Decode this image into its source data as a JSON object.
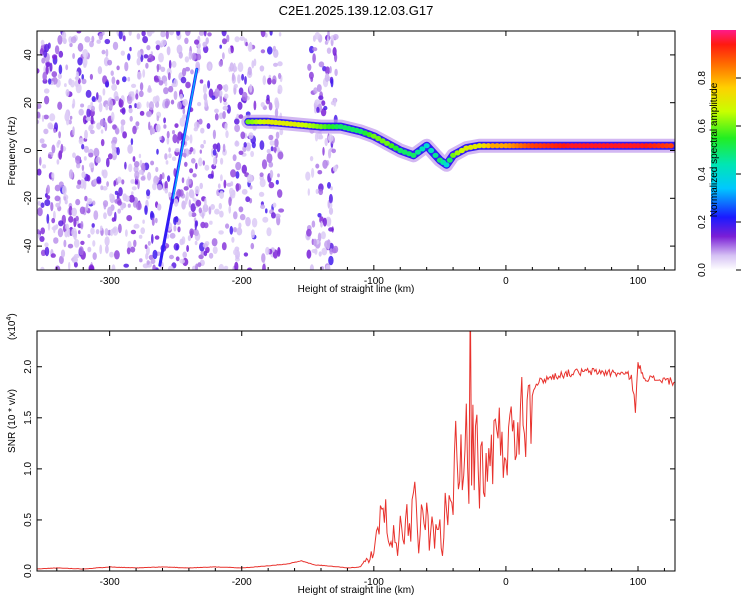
{
  "title": "C2E1.2025.139.12.03.G17",
  "colorbar": {
    "label": "Normalized spectral amplitude",
    "ticks": [
      0.0,
      0.2,
      0.4,
      0.6,
      0.8
    ]
  },
  "chart_data": [
    {
      "type": "heatmap",
      "title": "C2E1.2025.139.12.03.G17",
      "xlabel": "Height of straight line (km)",
      "ylabel": "Frequency (Hz)",
      "xlim": [
        -355,
        128
      ],
      "ylim": [
        -50,
        50
      ],
      "xticks": [
        -300,
        -200,
        -100,
        0,
        100
      ],
      "yticks": [
        -40,
        -20,
        0,
        20,
        40
      ],
      "colorbar_label": "Normalized spectral amplitude",
      "colorbar_range": [
        0,
        1
      ],
      "ridge": {
        "x": [
          -195,
          -180,
          -160,
          -140,
          -125,
          -110,
          -100,
          -90,
          -80,
          -70,
          -60,
          -50,
          -45,
          -40,
          -30,
          -20,
          -10,
          0,
          20,
          50,
          80,
          100,
          128
        ],
        "y": [
          12,
          12,
          11,
          10,
          10,
          8,
          6,
          3,
          0,
          -2,
          2,
          -4,
          -6,
          -2,
          1,
          2,
          2,
          2,
          2,
          2,
          2,
          2,
          2
        ],
        "amplitude": [
          0.6,
          0.7,
          0.7,
          0.6,
          0.5,
          0.5,
          0.6,
          0.6,
          0.5,
          0.5,
          0.4,
          0.5,
          0.4,
          0.6,
          0.7,
          0.7,
          0.8,
          0.8,
          0.9,
          0.95,
          0.95,
          0.95,
          0.9
        ]
      },
      "noise_regions": [
        {
          "x": [
            -355,
            -190
          ],
          "amplitude": "low"
        },
        {
          "x": [
            -185,
            -170
          ],
          "amplitude": "low"
        },
        {
          "x": [
            -150,
            -128
          ],
          "amplitude": "low"
        }
      ],
      "streak": {
        "x": [
          -262,
          -234
        ],
        "y": [
          -48,
          34
        ]
      }
    },
    {
      "type": "line",
      "xlabel": "Height of straight line (km)",
      "ylabel": "SNR (10 * v/v)",
      "multiplier_label": "(x10",
      "multiplier_exp": "4",
      "xlim": [
        -355,
        128
      ],
      "ylim": [
        0,
        2.35
      ],
      "xticks": [
        -300,
        -200,
        -100,
        0,
        100
      ],
      "yticks": [
        0.0,
        0.5,
        1.0,
        1.5,
        2.0
      ],
      "color": "#e8322d",
      "series": [
        {
          "x": [
            -355,
            -340,
            -320,
            -300,
            -280,
            -260,
            -240,
            -220,
            -200,
            -180,
            -165,
            -155,
            -145,
            -135,
            -120,
            -110,
            -102,
            -98,
            -95,
            -92,
            -90,
            -88,
            -85,
            -82,
            -80,
            -78,
            -75,
            -72,
            -70,
            -68,
            -66,
            -64,
            -62,
            -60,
            -58,
            -56,
            -54,
            -52,
            -50,
            -48,
            -46,
            -44,
            -42,
            -40,
            -38,
            -36,
            -34,
            -32,
            -30,
            -28,
            -27,
            -26,
            -25,
            -24,
            -22,
            -20,
            -18,
            -16,
            -14,
            -12,
            -10,
            -8,
            -6,
            -4,
            -2,
            0,
            2,
            4,
            6,
            8,
            10,
            12,
            14,
            16,
            18,
            20,
            22,
            25,
            30,
            40,
            50,
            60,
            70,
            80,
            90,
            95,
            97,
            98,
            100,
            105,
            110,
            120,
            128
          ],
          "y": [
            0.02,
            0.03,
            0.02,
            0.04,
            0.03,
            0.04,
            0.03,
            0.04,
            0.03,
            0.05,
            0.07,
            0.1,
            0.06,
            0.05,
            0.03,
            0.04,
            0.15,
            0.3,
            0.55,
            0.7,
            0.4,
            0.2,
            0.35,
            0.15,
            0.45,
            0.25,
            0.6,
            0.3,
            0.8,
            0.6,
            0.2,
            0.5,
            0.4,
            0.55,
            0.3,
            0.48,
            0.25,
            0.45,
            0.4,
            0.2,
            0.6,
            0.35,
            0.9,
            0.5,
            1.2,
            0.6,
            1.05,
            0.8,
            1.4,
            1.0,
            2.35,
            0.8,
            1.75,
            1.1,
            1.2,
            0.9,
            1.1,
            0.8,
            1.0,
            1.1,
            1.2,
            1.35,
            1.1,
            1.4,
            1.2,
            1.3,
            1.45,
            1.25,
            1.55,
            1.4,
            1.7,
            1.55,
            1.75,
            1.65,
            1.8,
            1.75,
            1.82,
            1.85,
            1.88,
            1.92,
            1.94,
            1.95,
            1.95,
            1.94,
            1.93,
            1.9,
            1.7,
            1.58,
            2.02,
            1.9,
            1.88,
            1.87,
            1.85
          ]
        }
      ]
    }
  ]
}
